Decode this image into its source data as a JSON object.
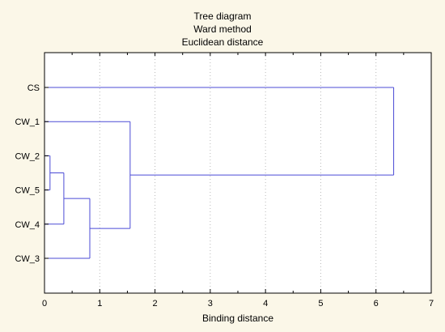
{
  "chart_data": {
    "type": "dendrogram",
    "title_lines": [
      "Tree diagram",
      "Ward method",
      "Euclidean distance"
    ],
    "xlabel": "Binding distance",
    "xlim": [
      0,
      7
    ],
    "xticks": [
      "0",
      "1",
      "2",
      "3",
      "4",
      "5",
      "6",
      "7"
    ],
    "leaves": [
      "CS",
      "CW_1",
      "CW_2",
      "CW_5",
      "CW_4",
      "CW_3"
    ],
    "merges": [
      {
        "children": [
          "CW_2",
          "CW_5"
        ],
        "distance": 0.1
      },
      {
        "children": [
          "CW_2+CW_5",
          "CW_4"
        ],
        "distance": 0.35
      },
      {
        "children": [
          "CW_2+CW_5+CW_4",
          "CW_3"
        ],
        "distance": 0.82
      },
      {
        "children": [
          "CW_1",
          "CW_2+CW_5+CW_4+CW_3"
        ],
        "distance": 1.55
      },
      {
        "children": [
          "CS",
          "CW_1+CW_2+CW_5+CW_4+CW_3"
        ],
        "distance": 6.32
      }
    ],
    "grid": true,
    "colors": {
      "background": "#fbf7e8",
      "plot_area": "#ffffff",
      "tree_line": "#4b4bd6",
      "grid_line": "#b8b8b8"
    }
  }
}
